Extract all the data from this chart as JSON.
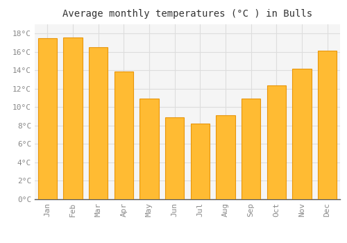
{
  "title": "Average monthly temperatures (°C ) in Bulls",
  "months": [
    "Jan",
    "Feb",
    "Mar",
    "Apr",
    "May",
    "Jun",
    "Jul",
    "Aug",
    "Sep",
    "Oct",
    "Nov",
    "Dec"
  ],
  "values": [
    17.5,
    17.6,
    16.5,
    13.9,
    10.9,
    8.9,
    8.2,
    9.1,
    10.9,
    12.4,
    14.2,
    16.1
  ],
  "bar_color": "#FFBB33",
  "bar_edge_color": "#E8960A",
  "ylim": [
    0,
    19
  ],
  "yticks": [
    0,
    2,
    4,
    6,
    8,
    10,
    12,
    14,
    16,
    18
  ],
  "background_color": "#FFFFFF",
  "plot_bg_color": "#F5F5F5",
  "grid_color": "#DDDDDD",
  "title_fontsize": 10,
  "tick_fontsize": 8,
  "tick_color": "#888888",
  "title_color": "#333333"
}
